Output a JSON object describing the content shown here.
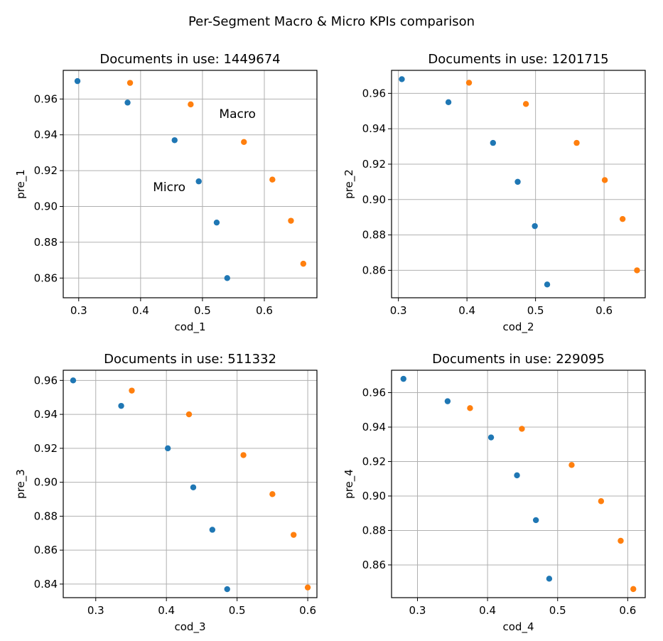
{
  "figure": {
    "suptitle": "Per-Segment Macro & Micro KPIs comparison",
    "colors": {
      "micro": "#1f77b4",
      "macro": "#ff7f0e",
      "grid": "#b0b0b0"
    }
  },
  "chart_data": [
    {
      "type": "scatter",
      "title": "Documents in use: 1449674",
      "xlabel": "cod_1",
      "ylabel": "pre_1",
      "xlim": [
        0.275,
        0.685
      ],
      "ylim": [
        0.849,
        0.976
      ],
      "xticks": [
        0.3,
        0.4,
        0.5,
        0.6
      ],
      "xtick_labels": [
        "0.3",
        "0.4",
        "0.5",
        "0.6"
      ],
      "yticks": [
        0.86,
        0.88,
        0.9,
        0.92,
        0.94,
        0.96
      ],
      "ytick_labels": [
        "0.86",
        "0.88",
        "0.90",
        "0.92",
        "0.94",
        "0.96"
      ],
      "grid": true,
      "annotations": [
        {
          "text": "Macro",
          "x": 0.527,
          "y": 0.9495
        },
        {
          "text": "Micro",
          "x": 0.42,
          "y": 0.9085
        }
      ],
      "series": [
        {
          "color": "#1f77b4",
          "x": [
            0.298,
            0.379,
            0.455,
            0.494,
            0.523,
            0.54
          ],
          "y": [
            0.97,
            0.958,
            0.937,
            0.914,
            0.891,
            0.86
          ]
        },
        {
          "color": "#ff7f0e",
          "x": [
            0.383,
            0.481,
            0.567,
            0.613,
            0.643,
            0.663
          ],
          "y": [
            0.969,
            0.957,
            0.936,
            0.915,
            0.892,
            0.868
          ]
        }
      ]
    },
    {
      "type": "scatter",
      "title": "Documents in use: 1201715",
      "xlabel": "cod_2",
      "ylabel": "pre_2",
      "xlim": [
        0.29,
        0.66
      ],
      "ylim": [
        0.8445,
        0.973
      ],
      "xticks": [
        0.3,
        0.4,
        0.5,
        0.6
      ],
      "xtick_labels": [
        "0.3",
        "0.4",
        "0.5",
        "0.6"
      ],
      "yticks": [
        0.86,
        0.88,
        0.9,
        0.92,
        0.94,
        0.96
      ],
      "ytick_labels": [
        "0.86",
        "0.88",
        "0.90",
        "0.92",
        "0.94",
        "0.96"
      ],
      "grid": true,
      "annotations": [],
      "series": [
        {
          "color": "#1f77b4",
          "x": [
            0.305,
            0.373,
            0.438,
            0.474,
            0.499,
            0.517
          ],
          "y": [
            0.968,
            0.955,
            0.932,
            0.91,
            0.885,
            0.852
          ]
        },
        {
          "color": "#ff7f0e",
          "x": [
            0.403,
            0.486,
            0.56,
            0.601,
            0.627,
            0.648
          ],
          "y": [
            0.966,
            0.954,
            0.932,
            0.911,
            0.889,
            0.86
          ]
        }
      ]
    },
    {
      "type": "scatter",
      "title": "Documents in use: 511332",
      "xlabel": "cod_3",
      "ylabel": "pre_3",
      "xlim": [
        0.254,
        0.613
      ],
      "ylim": [
        0.832,
        0.966
      ],
      "xticks": [
        0.3,
        0.4,
        0.5,
        0.6
      ],
      "xtick_labels": [
        "0.3",
        "0.4",
        "0.5",
        "0.6"
      ],
      "yticks": [
        0.84,
        0.86,
        0.88,
        0.9,
        0.92,
        0.94,
        0.96
      ],
      "ytick_labels": [
        "0.84",
        "0.86",
        "0.88",
        "0.90",
        "0.92",
        "0.94",
        "0.96"
      ],
      "grid": true,
      "annotations": [],
      "series": [
        {
          "color": "#1f77b4",
          "x": [
            0.268,
            0.336,
            0.402,
            0.438,
            0.465,
            0.486
          ],
          "y": [
            0.96,
            0.945,
            0.92,
            0.897,
            0.872,
            0.837
          ]
        },
        {
          "color": "#ff7f0e",
          "x": [
            0.351,
            0.432,
            0.509,
            0.55,
            0.58,
            0.6
          ],
          "y": [
            0.954,
            0.94,
            0.916,
            0.893,
            0.869,
            0.838
          ]
        }
      ]
    },
    {
      "type": "scatter",
      "title": "Documents in use: 229095",
      "xlabel": "cod_4",
      "ylabel": "pre_4",
      "xlim": [
        0.263,
        0.625
      ],
      "ylim": [
        0.841,
        0.973
      ],
      "xticks": [
        0.3,
        0.4,
        0.5,
        0.6
      ],
      "xtick_labels": [
        "0.3",
        "0.4",
        "0.5",
        "0.6"
      ],
      "yticks": [
        0.86,
        0.88,
        0.9,
        0.92,
        0.94,
        0.96
      ],
      "ytick_labels": [
        "0.86",
        "0.88",
        "0.90",
        "0.92",
        "0.94",
        "0.96"
      ],
      "grid": true,
      "annotations": [],
      "series": [
        {
          "color": "#1f77b4",
          "x": [
            0.28,
            0.343,
            0.405,
            0.442,
            0.469,
            0.488
          ],
          "y": [
            0.968,
            0.955,
            0.934,
            0.912,
            0.886,
            0.852
          ]
        },
        {
          "color": "#ff7f0e",
          "x": [
            0.375,
            0.449,
            0.52,
            0.562,
            0.59,
            0.608
          ],
          "y": [
            0.951,
            0.939,
            0.918,
            0.897,
            0.874,
            0.846
          ]
        }
      ]
    }
  ]
}
